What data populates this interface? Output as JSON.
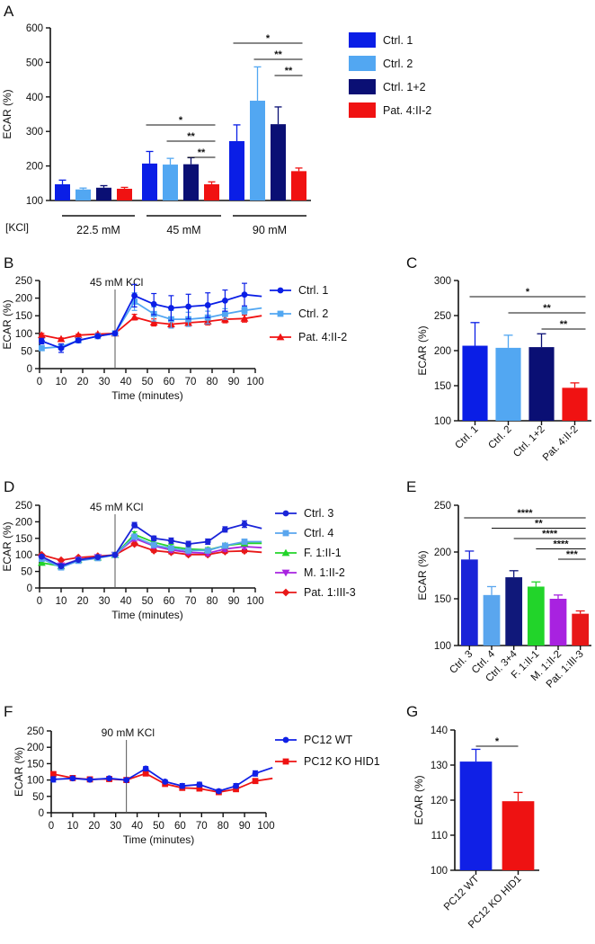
{
  "figure": {
    "panels": [
      "A",
      "B",
      "C",
      "D",
      "E",
      "F",
      "G"
    ],
    "kcl_label": "[KCl]",
    "time_label": "Time (minutes)",
    "ecar_label": "ECAR (%)"
  },
  "colors": {
    "ctrl1": "#0a1ee6",
    "ctrl2": "#52a7f2",
    "ctrl12": "#0a0f74",
    "pat": "#f01212",
    "ctrl3": "#1a24d8",
    "ctrl4": "#5aa6ee",
    "ctrl34": "#10187a",
    "f": "#22d42a",
    "m": "#a822e0",
    "pat1": "#e81818",
    "pc12wt": "#1020e6",
    "pc12ko": "#ee1212"
  },
  "chart_data": [
    {
      "id": "A",
      "type": "bar",
      "ylabel": "ECAR (%)",
      "ylim": [
        100,
        600
      ],
      "yticks": [
        100,
        200,
        300,
        400,
        500,
        600
      ],
      "group_axis_label": "[KCl]",
      "groups": [
        "22.5 mM",
        "45 mM",
        "90 mM"
      ],
      "series": [
        {
          "name": "Ctrl. 1",
          "values": [
            147,
            207,
            272
          ],
          "errors": [
            12,
            35,
            47
          ]
        },
        {
          "name": "Ctrl. 2",
          "values": [
            132,
            204,
            389
          ],
          "errors": [
            4,
            18,
            98
          ]
        },
        {
          "name": "Ctrl. 1+2",
          "values": [
            137,
            205,
            321
          ],
          "errors": [
            6,
            19,
            50
          ]
        },
        {
          "name": "Pat. 4:II-2",
          "values": [
            134,
            147,
            185
          ],
          "errors": [
            4,
            7,
            9
          ]
        }
      ],
      "significance": [
        {
          "group": 1,
          "from": 0,
          "to": 3,
          "label": "*"
        },
        {
          "group": 1,
          "from": 1,
          "to": 3,
          "label": "**"
        },
        {
          "group": 1,
          "from": 2,
          "to": 3,
          "label": "**"
        },
        {
          "group": 2,
          "from": 0,
          "to": 3,
          "label": "*"
        },
        {
          "group": 2,
          "from": 1,
          "to": 3,
          "label": "**"
        },
        {
          "group": 2,
          "from": 2,
          "to": 3,
          "label": "**"
        }
      ]
    },
    {
      "id": "B",
      "type": "line",
      "xlabel": "Time (minutes)",
      "ylabel": "ECAR (%)",
      "xlim": [
        0,
        100
      ],
      "ylim": [
        0,
        250
      ],
      "xticks": [
        0,
        10,
        20,
        30,
        40,
        50,
        60,
        70,
        80,
        90,
        100
      ],
      "yticks": [
        0,
        50,
        100,
        150,
        200,
        250
      ],
      "annotation": {
        "x": 35,
        "label": "45 mM KCl"
      },
      "x": [
        1,
        10,
        18,
        27,
        35,
        44,
        53,
        61,
        69,
        78,
        86,
        95,
        103
      ],
      "series": [
        {
          "name": "Ctrl. 1",
          "marker": "circle",
          "values": [
            78,
            58,
            80,
            92,
            100,
            207,
            183,
            172,
            176,
            180,
            193,
            210,
            205
          ],
          "errors": [
            8,
            12,
            5,
            4,
            0,
            32,
            30,
            35,
            35,
            35,
            30,
            32,
            0
          ]
        },
        {
          "name": "Ctrl. 2",
          "marker": "square",
          "values": [
            58,
            62,
            80,
            92,
            100,
            190,
            155,
            140,
            140,
            145,
            155,
            165,
            172
          ],
          "errors": [
            4,
            5,
            5,
            4,
            0,
            25,
            20,
            25,
            20,
            18,
            15,
            10,
            0
          ]
        },
        {
          "name": "Pat. 4:II-2",
          "marker": "triangle",
          "values": [
            95,
            84,
            95,
            98,
            100,
            146,
            131,
            126,
            130,
            134,
            140,
            142,
            150
          ],
          "errors": [
            5,
            3,
            3,
            3,
            0,
            8,
            10,
            10,
            10,
            10,
            10,
            10,
            0
          ]
        }
      ]
    },
    {
      "id": "C",
      "type": "bar",
      "ylabel": "ECAR (%)",
      "ylim": [
        100,
        300
      ],
      "yticks": [
        100,
        150,
        200,
        250,
        300
      ],
      "categories": [
        "Ctrl. 1",
        "Ctrl. 2",
        "Ctrl. 1+2",
        "Pat. 4:II-2"
      ],
      "values": [
        207,
        204,
        205,
        147
      ],
      "errors": [
        33,
        18,
        19,
        7
      ],
      "significance": [
        {
          "from": 0,
          "to": 3,
          "label": "*"
        },
        {
          "from": 1,
          "to": 3,
          "label": "**"
        },
        {
          "from": 2,
          "to": 3,
          "label": "**"
        }
      ]
    },
    {
      "id": "D",
      "type": "line",
      "xlabel": "Time (minutes)",
      "ylabel": "ECAR (%)",
      "xlim": [
        0,
        100
      ],
      "ylim": [
        0,
        250
      ],
      "xticks": [
        0,
        10,
        20,
        30,
        40,
        50,
        60,
        70,
        80,
        90,
        100
      ],
      "yticks": [
        0,
        50,
        100,
        150,
        200,
        250
      ],
      "annotation": {
        "x": 35,
        "label": "45 mM KCl"
      },
      "x": [
        1,
        10,
        18,
        27,
        35,
        44,
        53,
        61,
        69,
        78,
        86,
        95,
        103
      ],
      "series": [
        {
          "name": "Ctrl. 3",
          "marker": "circle",
          "values": [
            95,
            66,
            85,
            93,
            100,
            190,
            150,
            143,
            133,
            140,
            177,
            193,
            180
          ],
          "errors": [
            4,
            5,
            3,
            3,
            0,
            8,
            7,
            8,
            8,
            8,
            8,
            10,
            0
          ]
        },
        {
          "name": "Ctrl. 4",
          "marker": "square",
          "values": [
            88,
            62,
            82,
            90,
            100,
            155,
            130,
            120,
            113,
            113,
            128,
            140,
            140
          ],
          "errors": [
            4,
            4,
            3,
            3,
            0,
            8,
            7,
            7,
            7,
            7,
            7,
            7,
            0
          ]
        },
        {
          "name": "F. 1:II-1",
          "marker": "triangle",
          "values": [
            76,
            66,
            85,
            92,
            100,
            162,
            138,
            125,
            118,
            115,
            128,
            135,
            135
          ],
          "errors": [
            4,
            4,
            3,
            3,
            0,
            8,
            7,
            7,
            7,
            7,
            7,
            7,
            0
          ]
        },
        {
          "name": "M. 1:II-2",
          "marker": "triangle-down",
          "values": [
            88,
            68,
            86,
            93,
            100,
            150,
            127,
            115,
            108,
            105,
            118,
            125,
            122
          ],
          "errors": [
            4,
            4,
            3,
            3,
            0,
            8,
            7,
            7,
            7,
            7,
            7,
            7,
            0
          ]
        },
        {
          "name": "Pat. 1:III-3",
          "marker": "diamond",
          "values": [
            100,
            84,
            92,
            96,
            100,
            133,
            113,
            108,
            101,
            101,
            110,
            112,
            108
          ],
          "errors": [
            3,
            3,
            3,
            3,
            0,
            5,
            5,
            5,
            5,
            5,
            5,
            5,
            0
          ]
        }
      ]
    },
    {
      "id": "E",
      "type": "bar",
      "ylabel": "ECAR (%)",
      "ylim": [
        100,
        250
      ],
      "yticks": [
        100,
        150,
        200,
        250
      ],
      "categories": [
        "Ctrl. 3",
        "Ctrl. 4",
        "Ctrl. 3+4",
        "F. 1:II-1",
        "M. 1:II-2",
        "Pat. 1:III-3"
      ],
      "values": [
        192,
        154,
        173,
        163,
        150,
        134
      ],
      "errors": [
        9,
        9,
        7,
        5,
        4,
        3
      ],
      "significance": [
        {
          "from": 0,
          "to": 5,
          "label": "****"
        },
        {
          "from": 1,
          "to": 5,
          "label": "**"
        },
        {
          "from": 2,
          "to": 5,
          "label": "****"
        },
        {
          "from": 3,
          "to": 5,
          "label": "****"
        },
        {
          "from": 4,
          "to": 5,
          "label": "***"
        }
      ]
    },
    {
      "id": "F",
      "type": "line",
      "xlabel": "Time (minutes)",
      "ylabel": "ECAR (%)",
      "xlim": [
        0,
        100
      ],
      "ylim": [
        0,
        250
      ],
      "xticks": [
        0,
        10,
        20,
        30,
        40,
        50,
        60,
        70,
        80,
        90,
        100
      ],
      "yticks": [
        0,
        50,
        100,
        150,
        200,
        250
      ],
      "annotation": {
        "x": 35,
        "label": "90 mM KCl"
      },
      "x": [
        1,
        10,
        18,
        27,
        35,
        44,
        53,
        61,
        69,
        78,
        86,
        95,
        103
      ],
      "series": [
        {
          "name": "PC12 WT",
          "marker": "circle",
          "values": [
            102,
            105,
            101,
            105,
            100,
            135,
            95,
            82,
            86,
            66,
            82,
            120,
            138
          ],
          "errors": [
            8,
            4,
            3,
            3,
            0,
            6,
            5,
            7,
            7,
            5,
            7,
            8,
            0
          ]
        },
        {
          "name": "PC12 KO HID1",
          "marker": "square",
          "values": [
            118,
            106,
            102,
            103,
            100,
            120,
            88,
            76,
            74,
            63,
            72,
            97,
            105
          ],
          "errors": [
            4,
            3,
            3,
            3,
            0,
            5,
            4,
            5,
            5,
            4,
            5,
            5,
            0
          ]
        }
      ]
    },
    {
      "id": "G",
      "type": "bar",
      "ylabel": "ECAR (%)",
      "ylim": [
        100,
        140
      ],
      "yticks": [
        100,
        110,
        120,
        130,
        140
      ],
      "categories": [
        "PC12 WT",
        "PC12 KO HID1"
      ],
      "values": [
        131,
        119.7
      ],
      "errors": [
        3.5,
        2.5
      ],
      "significance": [
        {
          "from": 0,
          "to": 1,
          "label": "*"
        }
      ]
    }
  ]
}
